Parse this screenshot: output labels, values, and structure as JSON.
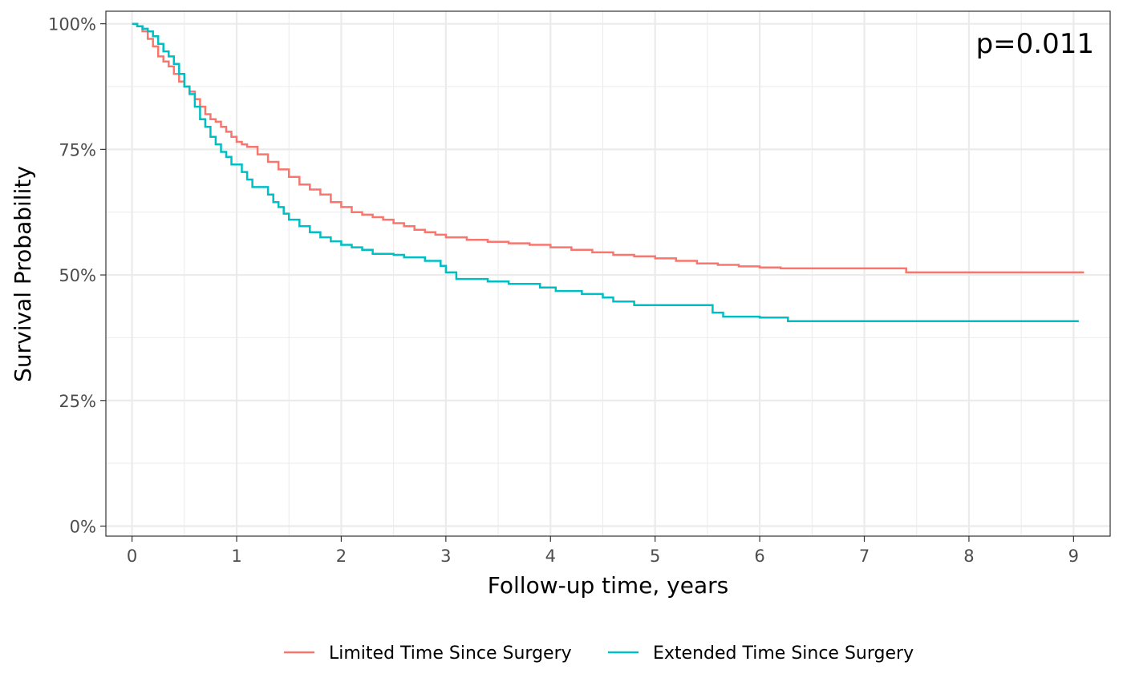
{
  "chart_data": {
    "type": "line",
    "step": true,
    "title": "",
    "xlabel": "Follow-up time, years",
    "ylabel": "Survival Probability",
    "xlim": [
      -0.25,
      9.35
    ],
    "ylim": [
      -0.02,
      1.025
    ],
    "x_ticks": [
      0,
      1,
      2,
      3,
      4,
      5,
      6,
      7,
      8,
      9
    ],
    "x_tick_labels": [
      "0",
      "1",
      "2",
      "3",
      "4",
      "5",
      "6",
      "7",
      "8",
      "9"
    ],
    "y_ticks": [
      0,
      0.25,
      0.5,
      0.75,
      1.0
    ],
    "y_tick_labels": [
      "0%",
      "25%",
      "50%",
      "75%",
      "100%"
    ],
    "grid": true,
    "legend_position": "bottom",
    "annotation": "p=0.011",
    "series": [
      {
        "name": "Limited Time Since Surgery",
        "color": "#F8766D",
        "x": [
          0,
          0.05,
          0.1,
          0.15,
          0.2,
          0.25,
          0.3,
          0.35,
          0.4,
          0.45,
          0.5,
          0.55,
          0.6,
          0.65,
          0.7,
          0.75,
          0.8,
          0.85,
          0.9,
          0.95,
          1.0,
          1.05,
          1.1,
          1.2,
          1.3,
          1.4,
          1.5,
          1.6,
          1.7,
          1.8,
          1.9,
          2.0,
          2.1,
          2.2,
          2.3,
          2.4,
          2.5,
          2.6,
          2.7,
          2.8,
          2.9,
          3.0,
          3.2,
          3.4,
          3.6,
          3.8,
          4.0,
          4.2,
          4.4,
          4.6,
          4.8,
          5.0,
          5.2,
          5.4,
          5.6,
          5.8,
          6.0,
          6.2,
          6.5,
          7.0,
          7.38,
          7.4,
          8.0,
          9.1
        ],
        "y": [
          1.0,
          0.995,
          0.985,
          0.97,
          0.955,
          0.935,
          0.925,
          0.915,
          0.9,
          0.885,
          0.875,
          0.865,
          0.85,
          0.835,
          0.82,
          0.81,
          0.805,
          0.795,
          0.785,
          0.775,
          0.765,
          0.76,
          0.755,
          0.74,
          0.725,
          0.71,
          0.695,
          0.68,
          0.67,
          0.66,
          0.645,
          0.635,
          0.625,
          0.62,
          0.615,
          0.61,
          0.603,
          0.597,
          0.59,
          0.585,
          0.58,
          0.575,
          0.57,
          0.566,
          0.563,
          0.56,
          0.555,
          0.55,
          0.545,
          0.54,
          0.537,
          0.533,
          0.528,
          0.523,
          0.52,
          0.517,
          0.515,
          0.513,
          0.513,
          0.513,
          0.513,
          0.505,
          0.505,
          0.505
        ]
      },
      {
        "name": "Extended Time Since Surgery",
        "color": "#00BFC4",
        "x": [
          0,
          0.05,
          0.1,
          0.15,
          0.2,
          0.25,
          0.3,
          0.35,
          0.4,
          0.45,
          0.5,
          0.55,
          0.6,
          0.65,
          0.7,
          0.75,
          0.8,
          0.85,
          0.9,
          0.95,
          1.0,
          1.05,
          1.1,
          1.15,
          1.2,
          1.3,
          1.35,
          1.4,
          1.45,
          1.5,
          1.6,
          1.7,
          1.8,
          1.9,
          2.0,
          2.1,
          2.2,
          2.3,
          2.5,
          2.6,
          2.8,
          2.95,
          3.0,
          3.1,
          3.4,
          3.6,
          3.9,
          4.0,
          4.05,
          4.3,
          4.5,
          4.6,
          4.8,
          5.5,
          5.55,
          5.65,
          6.0,
          6.27,
          7.0,
          8.0,
          9.05
        ],
        "y": [
          1.0,
          0.995,
          0.99,
          0.985,
          0.975,
          0.96,
          0.945,
          0.935,
          0.92,
          0.9,
          0.875,
          0.86,
          0.835,
          0.81,
          0.795,
          0.775,
          0.76,
          0.745,
          0.735,
          0.72,
          0.72,
          0.705,
          0.69,
          0.675,
          0.675,
          0.66,
          0.645,
          0.635,
          0.622,
          0.61,
          0.597,
          0.585,
          0.575,
          0.567,
          0.56,
          0.555,
          0.55,
          0.542,
          0.54,
          0.535,
          0.528,
          0.518,
          0.505,
          0.492,
          0.487,
          0.482,
          0.475,
          0.475,
          0.468,
          0.462,
          0.455,
          0.447,
          0.44,
          0.44,
          0.425,
          0.417,
          0.415,
          0.408,
          0.408,
          0.408,
          0.408
        ]
      }
    ]
  }
}
